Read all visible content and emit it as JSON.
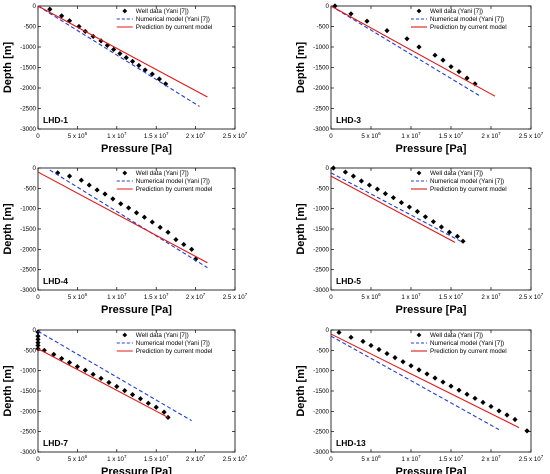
{
  "chart_data": [
    {
      "type": "line",
      "panel_label": "LHD-1",
      "xlabel": "Pressure [Pa]",
      "ylabel": "Depth [m]",
      "xlim": [
        0,
        25000000
      ],
      "ylim": [
        -3000,
        0
      ],
      "x_ticks": [
        "0",
        "5 x 10",
        "1 x 10",
        "1.5 x 10",
        "2 x 10",
        "2.5 x 10"
      ],
      "x_tick_exps": [
        "",
        "6",
        "7",
        "7",
        "7",
        "7"
      ],
      "y_ticks": [
        "0",
        "-500",
        "-1000",
        "-1500",
        "-2000",
        "-2500",
        "-3000"
      ],
      "legend": [
        "Well data (Yani [7])",
        "Numerical model (Yani [7])",
        "Prediction by current model"
      ],
      "series": [
        {
          "name": "Well data (Yani [7])",
          "style": "markers",
          "x": [
            1500000,
            3000000,
            4000000,
            5200000,
            6000000,
            7000000,
            8000000,
            8800000,
            9600000,
            10400000,
            11200000,
            12000000,
            12800000,
            13600000,
            14500000,
            15400000,
            16200000
          ],
          "y": [
            -80,
            -240,
            -360,
            -500,
            -620,
            -740,
            -850,
            -960,
            -1060,
            -1160,
            -1260,
            -1350,
            -1450,
            -1560,
            -1660,
            -1780,
            -1900
          ]
        },
        {
          "name": "Numerical model (Yani [7])",
          "style": "dashed",
          "x": [
            0,
            20500000
          ],
          "y": [
            0,
            -2450
          ]
        },
        {
          "name": "Prediction by current model",
          "style": "solid",
          "x": [
            0,
            21500000
          ],
          "y": [
            0,
            -2220
          ]
        }
      ]
    },
    {
      "type": "line",
      "panel_label": "LHD-3",
      "xlabel": "Pressure [Pa]",
      "ylabel": "Depth [m]",
      "xlim": [
        0,
        25000000
      ],
      "ylim": [
        -3000,
        0
      ],
      "x_ticks": [
        "0",
        "5 x 10",
        "1 x 10",
        "1.5 x 10",
        "2 x 10",
        "2.5 x 10"
      ],
      "x_tick_exps": [
        "",
        "6",
        "7",
        "7",
        "7",
        "7"
      ],
      "y_ticks": [
        "0",
        "-500",
        "-1000",
        "-1500",
        "-2000",
        "-2500",
        "-3000"
      ],
      "legend": [
        "Well data (Yani [7])",
        "Numerical model (Yani [7])",
        "Prediction by current model"
      ],
      "series": [
        {
          "name": "Well data (Yani [7])",
          "style": "markers",
          "x": [
            500000,
            2500000,
            4500000,
            7000000,
            9500000,
            11000000,
            13000000,
            14000000,
            15000000,
            16000000,
            17000000,
            18000000
          ],
          "y": [
            0,
            -190,
            -370,
            -600,
            -800,
            -1000,
            -1200,
            -1320,
            -1480,
            -1600,
            -1760,
            -1900
          ]
        },
        {
          "name": "Numerical model (Yani [7])",
          "style": "dashed",
          "x": [
            0,
            18500000
          ],
          "y": [
            0,
            -2180
          ]
        },
        {
          "name": "Prediction by current model",
          "style": "solid",
          "x": [
            0,
            20500000
          ],
          "y": [
            0,
            -2200
          ]
        }
      ]
    },
    {
      "type": "line",
      "panel_label": "LHD-4",
      "xlabel": "Pressure [Pa]",
      "ylabel": "Depth [m]",
      "xlim": [
        0,
        25000000
      ],
      "ylim": [
        -3000,
        0
      ],
      "x_ticks": [
        "0",
        "5 x 10",
        "1 x 10",
        "1.5 x 10",
        "2 x 10",
        "2.5 x 10"
      ],
      "x_tick_exps": [
        "",
        "6",
        "7",
        "7",
        "7",
        "7"
      ],
      "y_ticks": [
        "0",
        "-500",
        "-1000",
        "-1500",
        "-2000",
        "-2500",
        "-3000"
      ],
      "legend": [
        "Well data (Yani [7])",
        "Numerical model (Yani [7])",
        "Prediction by current model"
      ],
      "series": [
        {
          "name": "Well data (Yani [7])",
          "style": "markers",
          "x": [
            2500000,
            4000000,
            5500000,
            6500000,
            7500000,
            8500000,
            9500000,
            10500000,
            11500000,
            12500000,
            13500000,
            14500000,
            15500000,
            16500000,
            17500000,
            18500000,
            19500000,
            20000000
          ],
          "y": [
            -120,
            -200,
            -300,
            -420,
            -540,
            -640,
            -760,
            -880,
            -980,
            -1100,
            -1210,
            -1330,
            -1460,
            -1580,
            -1760,
            -1880,
            -2000,
            -2240
          ]
        },
        {
          "name": "Numerical model (Yani [7])",
          "style": "dashed",
          "x": [
            1500000,
            21500000
          ],
          "y": [
            -50,
            -2450
          ]
        },
        {
          "name": "Prediction by current model",
          "style": "solid",
          "x": [
            0,
            21500000
          ],
          "y": [
            -100,
            -2330
          ]
        }
      ]
    },
    {
      "type": "line",
      "panel_label": "LHD-5",
      "xlabel": "Pressure [Pa]",
      "ylabel": "Depth [m]",
      "xlim": [
        0,
        25000000
      ],
      "ylim": [
        -3000,
        0
      ],
      "x_ticks": [
        "0",
        "5 x 10",
        "1 x 10",
        "1.5 x 10",
        "2 x 10",
        "2.5 x 10"
      ],
      "x_tick_exps": [
        "",
        "6",
        "7",
        "7",
        "7",
        "7"
      ],
      "y_ticks": [
        "0",
        "-500",
        "-1000",
        "-1500",
        "-2000",
        "-2500",
        "-3000"
      ],
      "legend": [
        "Well data (Yani [7])",
        "Numerical model (Yani [7])",
        "Prediction by current model"
      ],
      "series": [
        {
          "name": "Well data (Yani [7])",
          "style": "markers",
          "x": [
            300000,
            1800000,
            2800000,
            3800000,
            4800000,
            5800000,
            6800000,
            7800000,
            8800000,
            9800000,
            10800000,
            11800000,
            12800000,
            13800000,
            14800000,
            15800000,
            16500000
          ],
          "y": [
            0,
            -100,
            -200,
            -320,
            -420,
            -520,
            -630,
            -730,
            -850,
            -960,
            -1070,
            -1200,
            -1320,
            -1450,
            -1580,
            -1680,
            -1800
          ]
        },
        {
          "name": "Numerical model (Yani [7])",
          "style": "dashed",
          "x": [
            0,
            16200000
          ],
          "y": [
            -120,
            -1800
          ]
        },
        {
          "name": "Prediction by current model",
          "style": "solid",
          "x": [
            0,
            15500000
          ],
          "y": [
            -200,
            -1830
          ]
        }
      ]
    },
    {
      "type": "line",
      "panel_label": "LHD-7",
      "xlabel": "Pressure [Pa]",
      "ylabel": "Depth [m]",
      "xlim": [
        0,
        25000000
      ],
      "ylim": [
        -3000,
        0
      ],
      "x_ticks": [
        "0",
        "5 x 10",
        "1 x 10",
        "1.5 x 10",
        "2 x 10",
        "2.5 x 10"
      ],
      "x_tick_exps": [
        "",
        "6",
        "7",
        "7",
        "7",
        "7"
      ],
      "y_ticks": [
        "0",
        "-500",
        "-1000",
        "-1500",
        "-2000",
        "-2500",
        "-3000"
      ],
      "legend": [
        "Well data (Yani [7])",
        "Numerical model (Yani [7])",
        "Prediction by current model"
      ],
      "series": [
        {
          "name": "Well data (Yani [7])",
          "style": "markers",
          "x": [
            0,
            0,
            0,
            0,
            0,
            0,
            800000,
            2000000,
            3000000,
            4000000,
            5000000,
            6000000,
            7000000,
            8000000,
            9000000,
            10000000,
            11000000,
            12000000,
            13000000,
            14000000,
            15000000,
            16000000,
            16500000
          ],
          "y": [
            -50,
            -150,
            -230,
            -310,
            -380,
            -460,
            -500,
            -600,
            -700,
            -800,
            -900,
            -990,
            -1090,
            -1190,
            -1290,
            -1390,
            -1490,
            -1590,
            -1690,
            -1800,
            -1900,
            -2020,
            -2150
          ]
        },
        {
          "name": "Numerical model (Yani [7])",
          "style": "dashed",
          "x": [
            0,
            19500000
          ],
          "y": [
            -30,
            -2230
          ]
        },
        {
          "name": "Prediction by current model",
          "style": "solid",
          "x": [
            0,
            16500000
          ],
          "y": [
            -460,
            -2150
          ]
        }
      ]
    },
    {
      "type": "line",
      "panel_label": "LHD-13",
      "xlabel": "Pressure [Pa]",
      "ylabel": "Depth [m]",
      "xlim": [
        0,
        25000000
      ],
      "ylim": [
        -3000,
        0
      ],
      "x_ticks": [
        "0",
        "5 x 10",
        "1 x 10",
        "1.5 x 10",
        "2 x 10",
        "2.5 x 10"
      ],
      "x_tick_exps": [
        "",
        "6",
        "7",
        "7",
        "7",
        "7"
      ],
      "y_ticks": [
        "0",
        "-500",
        "-1000",
        "-1500",
        "-2000",
        "-2500",
        "-3000"
      ],
      "legend": [
        "Well data (Yani [7])",
        "Numerical model (Yani [7])",
        "Prediction by current model"
      ],
      "series": [
        {
          "name": "Well data (Yani [7])",
          "style": "markers",
          "x": [
            1000000,
            2500000,
            4000000,
            5000000,
            6000000,
            7000000,
            8000000,
            9000000,
            10000000,
            11000000,
            12000000,
            13000000,
            14000000,
            15000000,
            16000000,
            17000000,
            18000000,
            19000000,
            20000000,
            21000000,
            22000000,
            23000000,
            24500000
          ],
          "y": [
            -60,
            -180,
            -280,
            -380,
            -480,
            -580,
            -680,
            -780,
            -880,
            -980,
            -1080,
            -1180,
            -1280,
            -1380,
            -1480,
            -1580,
            -1680,
            -1780,
            -1880,
            -1990,
            -2090,
            -2200,
            -2480
          ]
        },
        {
          "name": "Numerical model (Yani [7])",
          "style": "dashed",
          "x": [
            0,
            21000000
          ],
          "y": [
            -150,
            -2450
          ]
        },
        {
          "name": "Prediction by current model",
          "style": "solid",
          "x": [
            0,
            23500000
          ],
          "y": [
            -100,
            -2400
          ]
        }
      ]
    }
  ],
  "colors": {
    "axis": "#000000",
    "markers": "#000000",
    "numerical": "#1f3fd6",
    "prediction": "#e01818"
  }
}
